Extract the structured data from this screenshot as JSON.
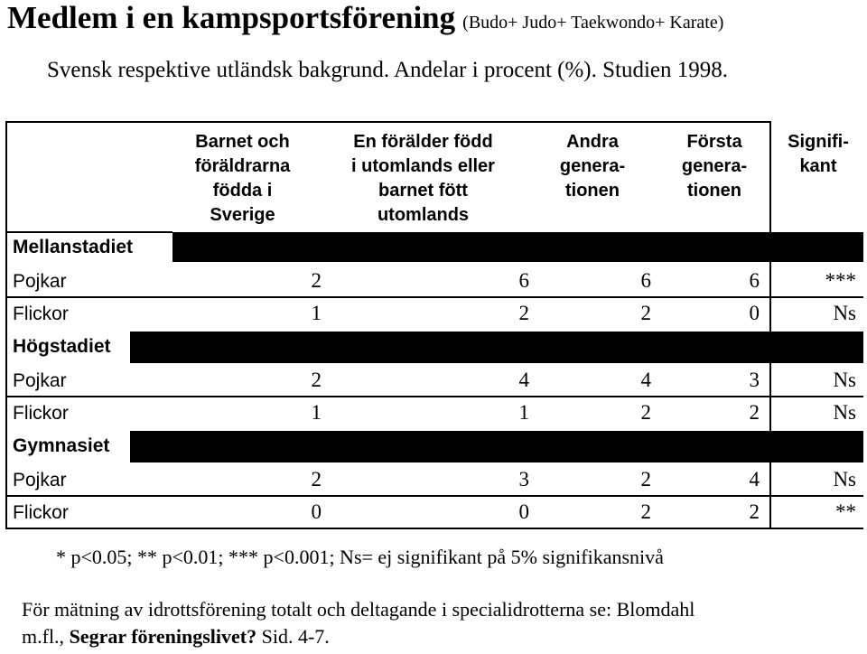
{
  "title": {
    "main": "Medlem i en kampsportsförening",
    "sub": "(Budo+ Judo+ Taekwondo+ Karate)"
  },
  "subtitle": "Svensk respektive utländsk bakgrund. Andelar i procent (%). Studien 1998.",
  "table": {
    "headers": {
      "col1": [
        "Barnet och",
        "föräldrarna",
        "födda i",
        "Sverige"
      ],
      "col2": [
        "En förälder född",
        "i utomlands eller",
        "barnet fött",
        "utomlands"
      ],
      "col3": [
        "Andra",
        "genera-",
        "tionen"
      ],
      "col4": [
        "Första",
        "genera-",
        "tionen"
      ],
      "col5": [
        "Signifi-",
        "kant"
      ]
    },
    "sections": [
      {
        "label": "Mellanstadiet",
        "rows": [
          {
            "label": "Pojkar",
            "values": [
              "2",
              "6",
              "6",
              "6"
            ],
            "sig": "***"
          },
          {
            "label": "Flickor",
            "values": [
              "1",
              "2",
              "2",
              "0"
            ],
            "sig": "Ns"
          }
        ]
      },
      {
        "label": "Högstadiet",
        "rows": [
          {
            "label": "Pojkar",
            "values": [
              "2",
              "4",
              "4",
              "3"
            ],
            "sig": "Ns"
          },
          {
            "label": "Flickor",
            "values": [
              "1",
              "1",
              "2",
              "2"
            ],
            "sig": "Ns"
          }
        ]
      },
      {
        "label": "Gymnasiet",
        "rows": [
          {
            "label": "Pojkar",
            "values": [
              "2",
              "3",
              "2",
              "4"
            ],
            "sig": "Ns"
          },
          {
            "label": "Flickor",
            "values": [
              "0",
              "0",
              "2",
              "2"
            ],
            "sig": "**"
          }
        ]
      }
    ]
  },
  "footnote": "* p<0.05; ** p<0.01; *** p<0.001; Ns= ej signifikant på 5% signifikansnivå",
  "note": {
    "line1": "För mätning av idrottsförening totalt och deltagande i specialidrotterna se: Blomdahl",
    "line2_prefix": "m.fl., ",
    "line2_bold": "Segrar föreningslivet?",
    "line2_suffix": " Sid.  4-7."
  }
}
